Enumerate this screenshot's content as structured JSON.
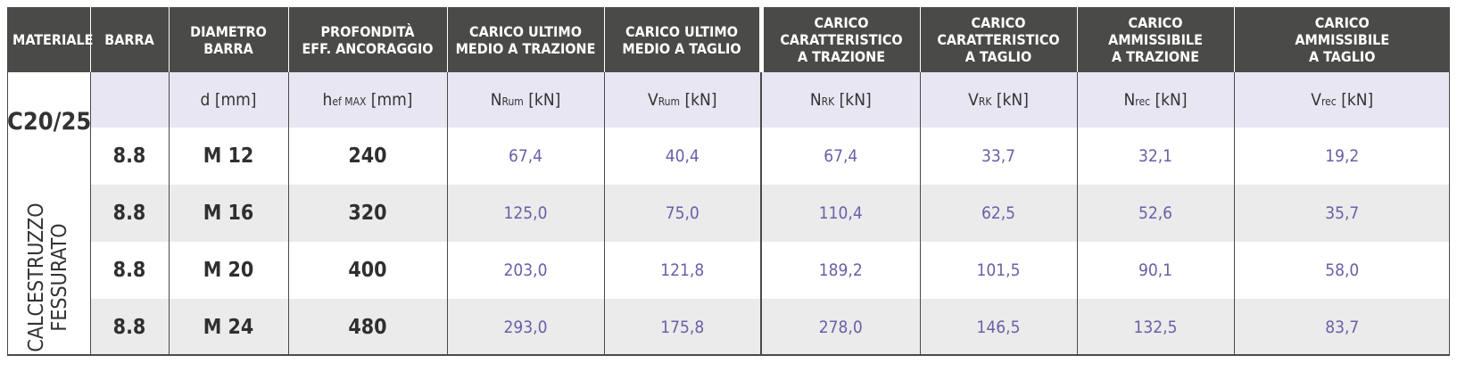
{
  "headers": [
    "MATERIALE",
    "BARRA",
    "DIAMETRO\nBARRA",
    "PROFONDITÀ\nEFF. ANCORAGGIO",
    "CARICO ULTIMO\nMEDIO A TRAZIONE",
    "CARICO ULTIMO\nMEDIO A TAGLIO",
    "CARICO\nCARATTERISTICO\nA TRAZIONE",
    "CARICO\nCARATTERISTICO\nA TAGLIO",
    "CARICO\nAMMISSIBILE\nA TRAZIONE",
    "CARICO\nAMMISSIBILE\nA TAGLIO"
  ],
  "material": {
    "class": "C20/25",
    "line1": "CALCESTRUZZO",
    "line2": "FESSURATO"
  },
  "units": {
    "diametro": {
      "sym": "d",
      "sub": "",
      "unit": "[mm]"
    },
    "profondita": {
      "sym": "h",
      "sub": "ef MAX",
      "unit": "[mm]"
    },
    "n_rum": {
      "sym": "N",
      "sub": "Rum",
      "unit": "[kN]"
    },
    "v_rum": {
      "sym": "V",
      "sub": "Rum",
      "unit": "[kN]"
    },
    "n_rk": {
      "sym": "N",
      "sub": "RK",
      "unit": "[kN]"
    },
    "v_rk": {
      "sym": "V",
      "sub": "RK",
      "unit": "[kN]"
    },
    "n_rec": {
      "sym": "N",
      "sub": "rec",
      "unit": "[kN]"
    },
    "v_rec": {
      "sym": "V",
      "sub": "rec",
      "unit": "[kN]"
    }
  },
  "rows": [
    {
      "barra": "8.8",
      "diametro": "M 12",
      "hef": "240",
      "n_rum": "67,4",
      "v_rum": "40,4",
      "n_rk": "67,4",
      "v_rk": "33,7",
      "n_rec": "32,1",
      "v_rec": "19,2"
    },
    {
      "barra": "8.8",
      "diametro": "M 16",
      "hef": "320",
      "n_rum": "125,0",
      "v_rum": "75,0",
      "n_rk": "110,4",
      "v_rk": "62,5",
      "n_rec": "52,6",
      "v_rec": "35,7"
    },
    {
      "barra": "8.8",
      "diametro": "M 20",
      "hef": "400",
      "n_rum": "203,0",
      "v_rum": "121,8",
      "n_rk": "189,2",
      "v_rk": "101,5",
      "n_rec": "90,1",
      "v_rec": "58,0"
    },
    {
      "barra": "8.8",
      "diametro": "M 24",
      "hef": "480",
      "n_rum": "293,0",
      "v_rum": "175,8",
      "n_rk": "278,0",
      "v_rk": "146,5",
      "n_rec": "132,5",
      "v_rec": "83,7"
    }
  ],
  "colors": {
    "header_bg": "#4a4a48",
    "unit_row_bg": "#e8e6f2",
    "alt_row_bg": "#ebebeb",
    "value_text": "#6a5fa8"
  }
}
